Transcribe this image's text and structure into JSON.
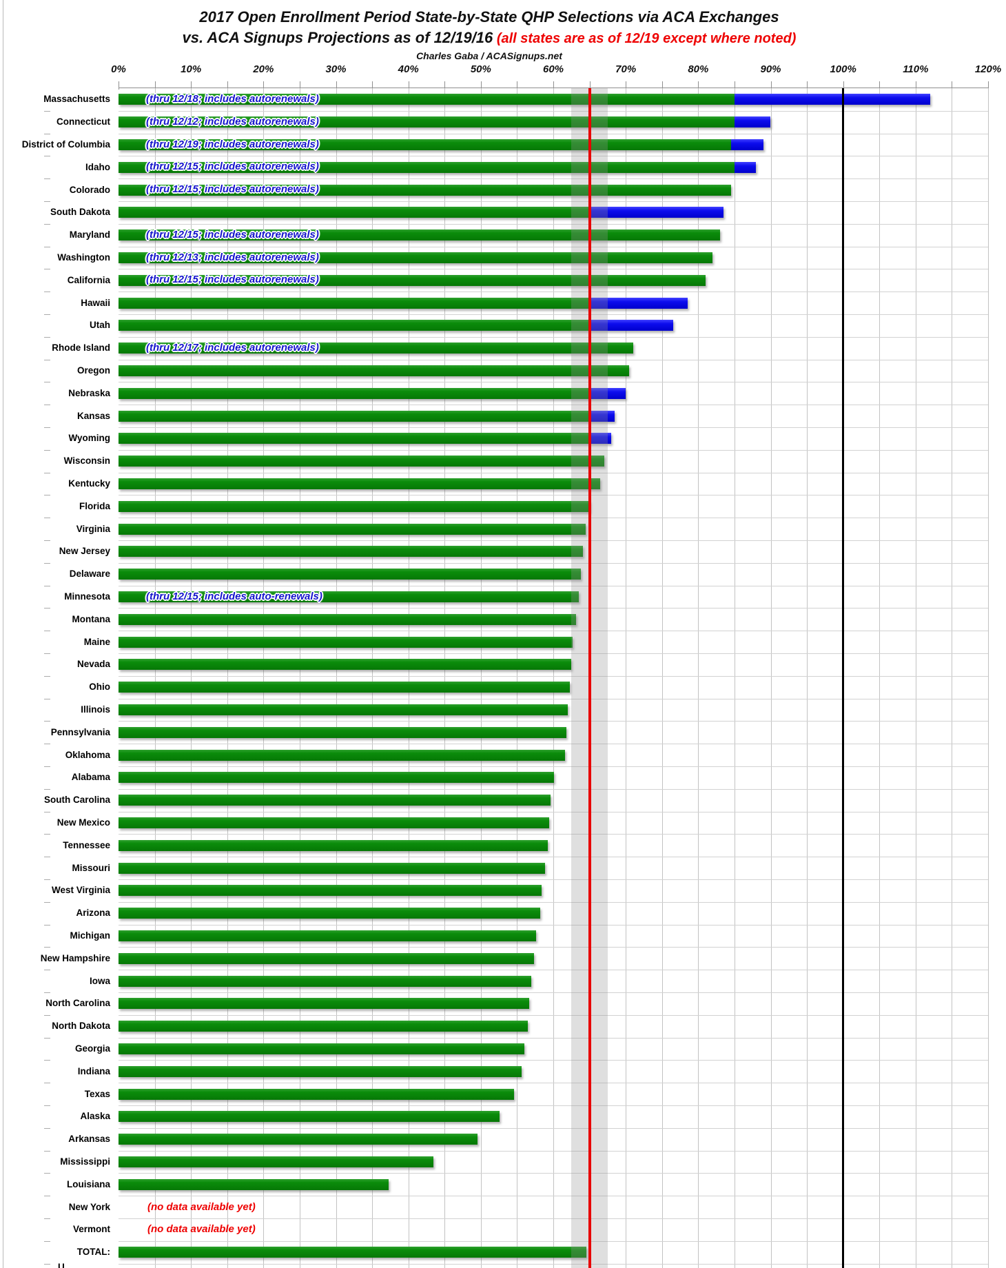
{
  "title": {
    "line1": "2017 Open Enrollment Period State-by-State QHP Selections via ACA Exchanges",
    "line2_black": "vs. ACA Signups Projections as of 12/19/16",
    "line2_red": " (all states are as of 12/19 except where noted)",
    "line3": "Charles Gaba / ACASignups.net"
  },
  "chart_data": {
    "type": "bar",
    "orientation": "horizontal",
    "title": "2017 Open Enrollment Period State-by-State QHP Selections via ACA Exchanges vs. ACA Signups Projections as of 12/19/16",
    "x_range": [
      0,
      120
    ],
    "x_ticks": [
      "0%",
      "10%",
      "20%",
      "30%",
      "40%",
      "50%",
      "60%",
      "70%",
      "80%",
      "90%",
      "100%",
      "110%",
      "120%"
    ],
    "gridline_step": 5,
    "grid": true,
    "units": "percent of projection",
    "reference_band": {
      "from": 62.5,
      "to": 67.5
    },
    "reference_lines": [
      {
        "value": 65,
        "color": "#e80000",
        "width": 4
      },
      {
        "value": 100,
        "color": "#000000",
        "width": 3
      }
    ],
    "no_data_text": "(no data available yet)",
    "bar_colors": {
      "reported": "#0b8c0b",
      "additional": "#0d0dee"
    },
    "states": [
      {
        "name": "Massachusetts",
        "green": 85,
        "total": 112,
        "note": "(thru 12/18; includes autorenewals)"
      },
      {
        "name": "Connecticut",
        "green": 85,
        "total": 90,
        "note": "(thru 12/12; includes autorenewals)"
      },
      {
        "name": "District of Columbia",
        "green": 84.5,
        "total": 89,
        "note": "(thru 12/19; includes autorenewals)"
      },
      {
        "name": "Idaho",
        "green": 85,
        "total": 88,
        "note": "(thru 12/15; includes autorenewals)"
      },
      {
        "name": "Colorado",
        "green": 84.5,
        "total": 84.5,
        "note": "(thru 12/15; includes autorenewals)"
      },
      {
        "name": "South Dakota",
        "green": 65,
        "total": 83.5
      },
      {
        "name": "Maryland",
        "green": 83,
        "total": 83,
        "note": "(thru 12/15; includes autorenewals)"
      },
      {
        "name": "Washington",
        "green": 82,
        "total": 82,
        "note": "(thru 12/13; includes autorenewals)"
      },
      {
        "name": "California",
        "green": 81,
        "total": 81,
        "note": "(thru 12/15; includes autorenewals)"
      },
      {
        "name": "Hawaii",
        "green": 65,
        "total": 78.5
      },
      {
        "name": "Utah",
        "green": 65,
        "total": 76.5
      },
      {
        "name": "Rhode Island",
        "green": 71,
        "total": 71,
        "note": "(thru 12/17; includes autorenewals)"
      },
      {
        "name": "Oregon",
        "green": 70.5,
        "total": 70.5
      },
      {
        "name": "Nebraska",
        "green": 65,
        "total": 70
      },
      {
        "name": "Kansas",
        "green": 65,
        "total": 68.5
      },
      {
        "name": "Wyoming",
        "green": 65,
        "total": 68
      },
      {
        "name": "Wisconsin",
        "green": 67,
        "total": 67
      },
      {
        "name": "Kentucky",
        "green": 66.5,
        "total": 66.5
      },
      {
        "name": "Florida",
        "green": 65,
        "total": 65
      },
      {
        "name": "Virginia",
        "green": 64.5,
        "total": 64.5
      },
      {
        "name": "New Jersey",
        "green": 64.1,
        "total": 64.1
      },
      {
        "name": "Delaware",
        "green": 63.8,
        "total": 63.8
      },
      {
        "name": "Minnesota",
        "green": 63.5,
        "total": 63.5,
        "note": "(thru 12/15; includes auto-renewals)"
      },
      {
        "name": "Montana",
        "green": 63.1,
        "total": 63.1
      },
      {
        "name": "Maine",
        "green": 62.7,
        "total": 62.7
      },
      {
        "name": "Nevada",
        "green": 62.5,
        "total": 62.5
      },
      {
        "name": "Ohio",
        "green": 62.3,
        "total": 62.3
      },
      {
        "name": "Illinois",
        "green": 62,
        "total": 62
      },
      {
        "name": "Pennsylvania",
        "green": 61.8,
        "total": 61.8
      },
      {
        "name": "Oklahoma",
        "green": 61.6,
        "total": 61.6
      },
      {
        "name": "Alabama",
        "green": 60.1,
        "total": 60.1
      },
      {
        "name": "South Carolina",
        "green": 59.6,
        "total": 59.6
      },
      {
        "name": "New Mexico",
        "green": 59.4,
        "total": 59.4
      },
      {
        "name": "Tennessee",
        "green": 59.2,
        "total": 59.2
      },
      {
        "name": "Missouri",
        "green": 58.9,
        "total": 58.9
      },
      {
        "name": "West Virginia",
        "green": 58.4,
        "total": 58.4
      },
      {
        "name": "Arizona",
        "green": 58.2,
        "total": 58.2
      },
      {
        "name": "Michigan",
        "green": 57.6,
        "total": 57.6
      },
      {
        "name": "New Hampshire",
        "green": 57.3,
        "total": 57.3
      },
      {
        "name": "Iowa",
        "green": 57,
        "total": 57
      },
      {
        "name": "North Carolina",
        "green": 56.7,
        "total": 56.7
      },
      {
        "name": "North Dakota",
        "green": 56.5,
        "total": 56.5
      },
      {
        "name": "Georgia",
        "green": 56,
        "total": 56
      },
      {
        "name": "Indiana",
        "green": 55.6,
        "total": 55.6
      },
      {
        "name": "Texas",
        "green": 54.6,
        "total": 54.6
      },
      {
        "name": "Alaska",
        "green": 52.6,
        "total": 52.6
      },
      {
        "name": "Arkansas",
        "green": 49.5,
        "total": 49.5
      },
      {
        "name": "Mississippi",
        "green": 43.5,
        "total": 43.5
      },
      {
        "name": "Louisiana",
        "green": 37.3,
        "total": 37.3
      },
      {
        "name": "New York",
        "no_data": true
      },
      {
        "name": "Vermont",
        "no_data": true
      },
      {
        "name": "TOTAL:",
        "green": 64.6,
        "total": 64.6
      }
    ],
    "cutoff_label": "U"
  }
}
